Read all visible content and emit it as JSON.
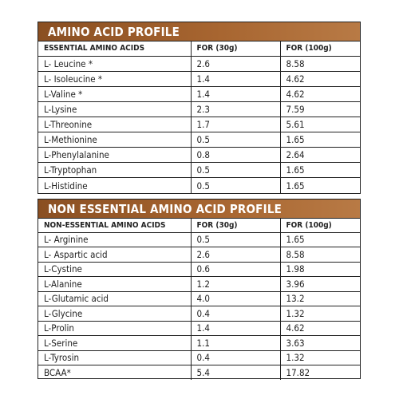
{
  "essential": {
    "title": "AMINO ACID PROFILE",
    "headers": [
      "ESSENTIAL AMINO ACIDS",
      "FOR (30g)",
      "FOR (100g)"
    ],
    "rows": [
      [
        "L- Leucine *",
        "2.6",
        "8.58"
      ],
      [
        "L- Isoleucine *",
        "1.4",
        "4.62"
      ],
      [
        "L-Valine *",
        "1.4",
        "4.62"
      ],
      [
        "L-Lysine",
        "2.3",
        "7.59"
      ],
      [
        "L-Threonine",
        "1.7",
        "5.61"
      ],
      [
        "L-Methionine",
        "0.5",
        "1.65"
      ],
      [
        "L-Phenylalanine",
        "0.8",
        "2.64"
      ],
      [
        "L-Tryptophan",
        "0.5",
        "1.65"
      ],
      [
        "L-Histidine",
        "0.5",
        "1.65"
      ]
    ]
  },
  "nonessential": {
    "title": "NON ESSENTIAL AMINO ACID PROFILE",
    "headers": [
      "NON-ESSENTIAL AMINO ACIDS",
      "FOR (30g)",
      "FOR (100g)"
    ],
    "rows": [
      [
        "L- Arginine",
        "0.5",
        "1.65"
      ],
      [
        "L- Aspartic acid",
        "2.6",
        "8.58"
      ],
      [
        "L-Cystine",
        "0.6",
        "1.98"
      ],
      [
        "L-Alanine",
        "1.2",
        "3.96"
      ],
      [
        "L-Glutamic acid",
        "4.0",
        "13.2"
      ],
      [
        "L-Glycine",
        "0.4",
        "1.32"
      ],
      [
        "L-Prolin",
        "1.4",
        "4.62"
      ],
      [
        "L-Serine",
        "1.1",
        "3.63"
      ],
      [
        "L-Tyrosin",
        "0.4",
        "1.32"
      ],
      [
        "BCAA*",
        "5.4",
        "17.82"
      ]
    ]
  },
  "colors": {
    "banner": "#a06030",
    "border": "#222222",
    "text": "#222222"
  }
}
